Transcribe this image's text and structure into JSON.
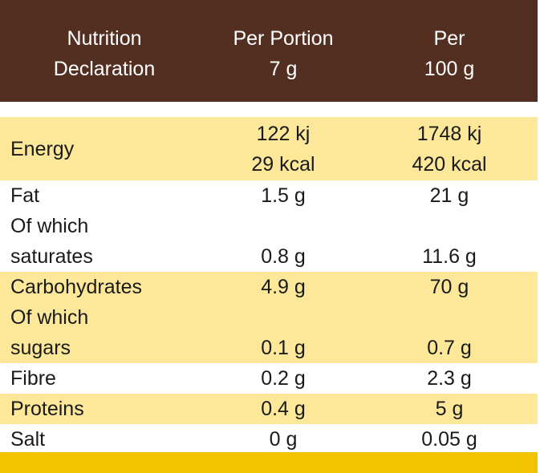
{
  "header": {
    "col1": "Nutrition\nDeclaration",
    "col2": "Per Portion\n7 g",
    "col3": "Per\n100 g"
  },
  "rows": [
    {
      "label": "Energy",
      "portion": "122 kj\n29 kcal",
      "per100": "1748 kj\n420 kcal"
    },
    {
      "label": "Fat",
      "portion": "1.5 g",
      "per100": "21 g"
    },
    {
      "label": "Of which\nsaturates",
      "portion": "0.8 g",
      "per100": "11.6 g"
    },
    {
      "label": "Carbohydrates",
      "portion": "4.9 g",
      "per100": "70 g"
    },
    {
      "label": "Of which\nsugars",
      "portion": "0.1 g",
      "per100": "0.7 g"
    },
    {
      "label": "Fibre",
      "portion": "0.2 g",
      "per100": "2.3 g"
    },
    {
      "label": "Proteins",
      "portion": "0.4 g",
      "per100": "5 g"
    },
    {
      "label": "Salt",
      "portion": "0 g",
      "per100": "0.05 g"
    }
  ],
  "colors": {
    "header_bg": "#532f22",
    "header_text": "#ffffff",
    "row_shade": "#fde89a",
    "footer_bar": "#f4c300"
  }
}
